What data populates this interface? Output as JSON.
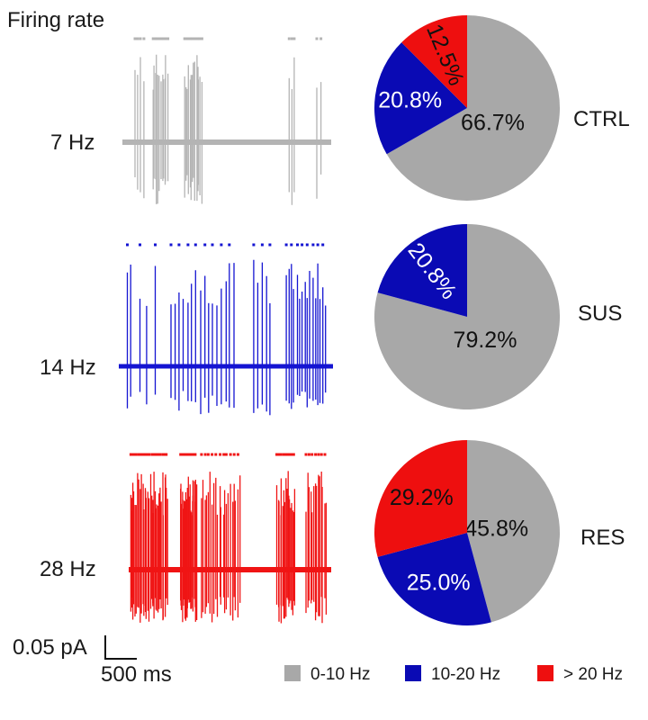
{
  "title": "Firing rate",
  "colors": {
    "low": "#a8a8a8",
    "mid": "#0a0ab4",
    "high": "#ee0f0f",
    "trace_gray": "#b4b4b4",
    "trace_blue": "#1414d2",
    "trace_red": "#f01414"
  },
  "scale_bar": {
    "amplitude_label": "0.05 pA",
    "time_label": "500 ms"
  },
  "legend": [
    {
      "label": "0-10 Hz",
      "color_key": "low"
    },
    {
      "label": "10-20 Hz",
      "color_key": "mid"
    },
    {
      "label": "> 20 Hz",
      "color_key": "high"
    }
  ],
  "chart_data": [
    {
      "type": "pie",
      "group": "CTRL",
      "trace_rate_label": "7 Hz",
      "trace_color_key": "trace_gray",
      "slices": [
        {
          "category": "0-10 Hz",
          "value": 66.7,
          "label": "66.7%",
          "color_key": "low"
        },
        {
          "category": "10-20 Hz",
          "value": 20.8,
          "label": "20.8%",
          "color_key": "mid"
        },
        {
          "category": "> 20 Hz",
          "value": 12.5,
          "label": "12.5%",
          "color_key": "high"
        }
      ]
    },
    {
      "type": "pie",
      "group": "SUS",
      "trace_rate_label": "14 Hz",
      "trace_color_key": "trace_blue",
      "slices": [
        {
          "category": "0-10 Hz",
          "value": 79.2,
          "label": "79.2%",
          "color_key": "low"
        },
        {
          "category": "10-20 Hz",
          "value": 20.8,
          "label": "20.8%",
          "color_key": "mid"
        }
      ]
    },
    {
      "type": "pie",
      "group": "RES",
      "trace_rate_label": "28 Hz",
      "trace_color_key": "trace_red",
      "slices": [
        {
          "category": "0-10 Hz",
          "value": 45.8,
          "label": "45.8%",
          "color_key": "low"
        },
        {
          "category": "10-20 Hz",
          "value": 25.0,
          "label": "25.0%",
          "color_key": "mid"
        },
        {
          "category": "> 20 Hz",
          "value": 29.2,
          "label": "29.2%",
          "color_key": "high"
        }
      ]
    }
  ]
}
